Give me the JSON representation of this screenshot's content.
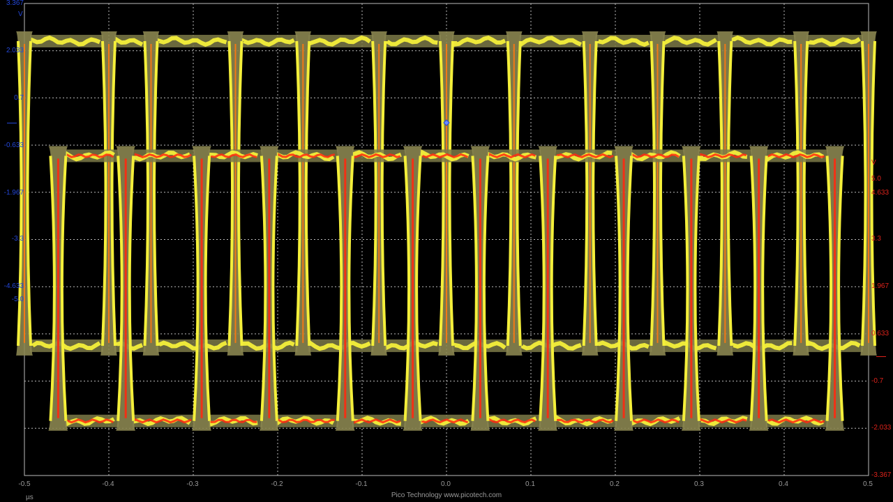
{
  "app": {
    "footer_text": "Pico Technology  www.picotech.com"
  },
  "channel_a": {
    "color": "#2447d8",
    "unit": "V",
    "scale_ticks": [
      "3.367",
      "2.033",
      "0.7",
      "-0.633",
      "-1.967",
      "-3.3",
      "-4.633",
      "-5.0"
    ]
  },
  "channel_b": {
    "color": "#e0231b",
    "unit": "V",
    "scale_ticks": [
      "5.0",
      "4.633",
      "3.3",
      "1.967",
      "0.633",
      "-0.7",
      "-2.033",
      "-3.367"
    ]
  },
  "x_axis": {
    "unit": "µs",
    "tick_labels": [
      "-0.5",
      "-0.4",
      "-0.3",
      "-0.2",
      "-0.1",
      "0.0",
      "0.1",
      "0.2",
      "0.3",
      "0.4",
      "0.5"
    ]
  },
  "trigger_marker": {
    "time_us": 0.0
  },
  "chart_data": {
    "type": "line",
    "title": "",
    "xlabel": "µs",
    "xlim": [
      -0.5,
      0.5
    ],
    "grid": true,
    "series": [
      {
        "channel": "A",
        "ylim": [
          -5.0,
          3.367
        ],
        "high_level": 2.7,
        "low_level": -2.7,
        "edge_times": [
          -0.5,
          -0.4,
          -0.35,
          -0.25,
          -0.17,
          -0.08,
          0.0,
          0.08,
          0.17,
          0.25,
          0.33,
          0.42,
          0.5
        ],
        "edge_period": 0.0833
      },
      {
        "channel": "B",
        "ylim": [
          -3.367,
          5.0
        ],
        "high_level": 2.3,
        "low_level": -2.4,
        "edge_times": [
          -0.46,
          -0.38,
          -0.29,
          -0.21,
          -0.12,
          -0.04,
          0.04,
          0.12,
          0.21,
          0.29,
          0.37,
          0.46
        ],
        "edge_period": 0.0833
      }
    ]
  }
}
